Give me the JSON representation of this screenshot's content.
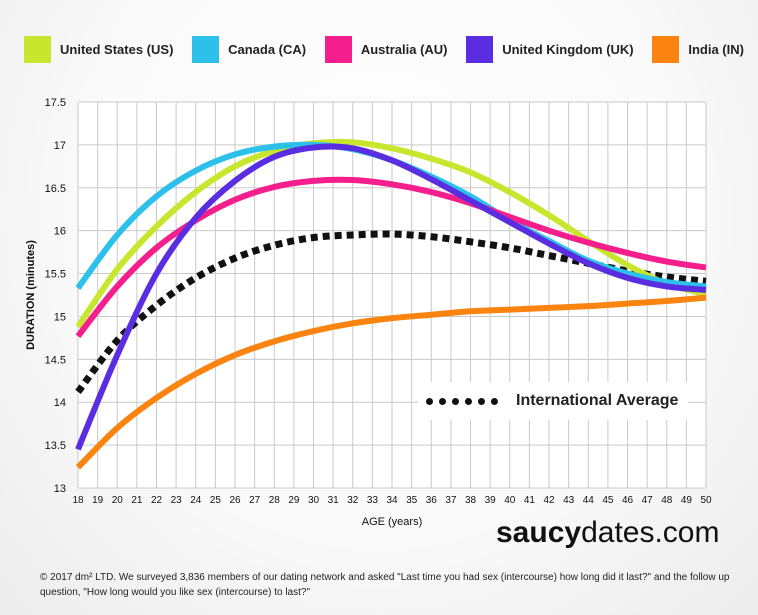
{
  "legend": [
    {
      "label": "United States (US)",
      "color": "#c8e62e"
    },
    {
      "label": "Canada (CA)",
      "color": "#2cc0ea"
    },
    {
      "label": "Australia (AU)",
      "color": "#f41f8c"
    },
    {
      "label": "United Kingdom (UK)",
      "color": "#5a2de0"
    },
    {
      "label": "India (IN)",
      "color": "#fb8310"
    }
  ],
  "average_legend": {
    "label": "International Average",
    "color": "#111111"
  },
  "brand": {
    "bold": "saucy",
    "rest": "dates.com"
  },
  "footer": "© 2017 dm² LTD. We surveyed 3,836 members of our dating network and asked \"Last time you had sex (intercourse) how long did it last?\" and the follow up question, \"How long would you like sex (intercourse) to last?\"",
  "chart_data": {
    "type": "line",
    "title": "",
    "xlabel": "AGE (years)",
    "ylabel": "DURATION (minutes)",
    "xlim": [
      18,
      50
    ],
    "ylim": [
      13,
      17.5
    ],
    "x_ticks": [
      18,
      19,
      20,
      21,
      22,
      23,
      24,
      25,
      26,
      27,
      28,
      29,
      30,
      31,
      32,
      33,
      34,
      35,
      36,
      37,
      38,
      39,
      40,
      41,
      42,
      43,
      44,
      45,
      46,
      47,
      48,
      49,
      50
    ],
    "y_ticks": [
      13,
      13.5,
      14,
      14.5,
      15,
      15.5,
      16,
      16.5,
      17,
      17.5
    ],
    "y_tick_labels": [
      "13",
      "13.5",
      "14",
      "14.5",
      "15",
      "15.5",
      "16",
      "16.5",
      "17",
      "17.5"
    ],
    "grid": true,
    "series": [
      {
        "name": "United States (US)",
        "color": "#c8e62e",
        "dash": false,
        "x": [
          18,
          20,
          22,
          24,
          26,
          28,
          30,
          32,
          34,
          36,
          38,
          40,
          42,
          44,
          46,
          48,
          50
        ],
        "values": [
          14.88,
          15.55,
          16.05,
          16.45,
          16.75,
          16.93,
          17.02,
          17.03,
          16.96,
          16.84,
          16.68,
          16.45,
          16.18,
          15.88,
          15.6,
          15.38,
          15.26
        ]
      },
      {
        "name": "Canada (CA)",
        "color": "#2cc0ea",
        "dash": false,
        "x": [
          18,
          20,
          22,
          24,
          26,
          28,
          30,
          32,
          34,
          36,
          38,
          40,
          42,
          44,
          46,
          48,
          50
        ],
        "values": [
          15.33,
          15.95,
          16.4,
          16.7,
          16.89,
          16.98,
          17.0,
          16.95,
          16.82,
          16.63,
          16.4,
          16.12,
          15.88,
          15.65,
          15.5,
          15.4,
          15.35
        ]
      },
      {
        "name": "Australia (AU)",
        "color": "#f41f8c",
        "dash": false,
        "x": [
          18,
          20,
          22,
          24,
          26,
          28,
          30,
          32,
          34,
          36,
          38,
          40,
          42,
          44,
          46,
          48,
          50
        ],
        "values": [
          14.77,
          15.35,
          15.8,
          16.12,
          16.36,
          16.51,
          16.58,
          16.59,
          16.54,
          16.45,
          16.32,
          16.16,
          16.0,
          15.86,
          15.74,
          15.64,
          15.57
        ]
      },
      {
        "name": "United Kingdom (UK)",
        "color": "#5a2de0",
        "dash": false,
        "x": [
          18,
          20,
          22,
          24,
          26,
          28,
          30,
          32,
          34,
          36,
          38,
          40,
          42,
          44,
          46,
          48,
          50
        ],
        "values": [
          13.45,
          14.55,
          15.5,
          16.15,
          16.58,
          16.86,
          16.97,
          16.96,
          16.82,
          16.6,
          16.35,
          16.1,
          15.85,
          15.62,
          15.45,
          15.35,
          15.31
        ]
      },
      {
        "name": "India (IN)",
        "color": "#fb8310",
        "dash": false,
        "x": [
          18,
          20,
          22,
          24,
          26,
          28,
          30,
          32,
          34,
          36,
          38,
          40,
          42,
          44,
          46,
          48,
          50
        ],
        "values": [
          13.24,
          13.7,
          14.05,
          14.33,
          14.55,
          14.71,
          14.83,
          14.92,
          14.98,
          15.02,
          15.06,
          15.08,
          15.1,
          15.12,
          15.15,
          15.18,
          15.22
        ]
      },
      {
        "name": "International Average",
        "color": "#111111",
        "dash": true,
        "x": [
          18,
          20,
          22,
          24,
          26,
          28,
          30,
          32,
          34,
          36,
          38,
          40,
          42,
          44,
          46,
          48,
          50
        ],
        "values": [
          14.12,
          14.72,
          15.13,
          15.45,
          15.68,
          15.83,
          15.92,
          15.95,
          15.96,
          15.93,
          15.87,
          15.8,
          15.71,
          15.62,
          15.53,
          15.46,
          15.41
        ]
      }
    ]
  }
}
